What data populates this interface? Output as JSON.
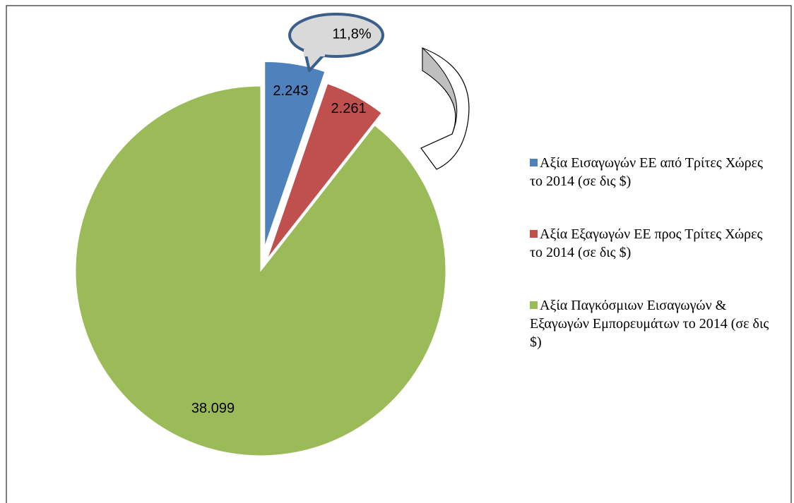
{
  "chart_data": {
    "type": "pie",
    "categories": [
      "Αξία Εισαγωγών ΕΕ από Τρίτες Χώρες το 2014 (σε δις $)",
      "Αξία Εξαγωγών ΕΕ προς Τρίτες Χώρες το 2014 (σε δις $)",
      "Αξία Παγκόσμιων Εισαγωγών & Εξαγωγών Εμπορευμάτων το 2014 (σε δις $)"
    ],
    "values": [
      2243,
      2261,
      38099
    ],
    "value_labels": [
      "2.243",
      "2.261",
      "38.099"
    ],
    "colors": [
      "#4f81bd",
      "#c0504d",
      "#9bbb59"
    ],
    "annotation": "11,8%",
    "legend": "right"
  }
}
